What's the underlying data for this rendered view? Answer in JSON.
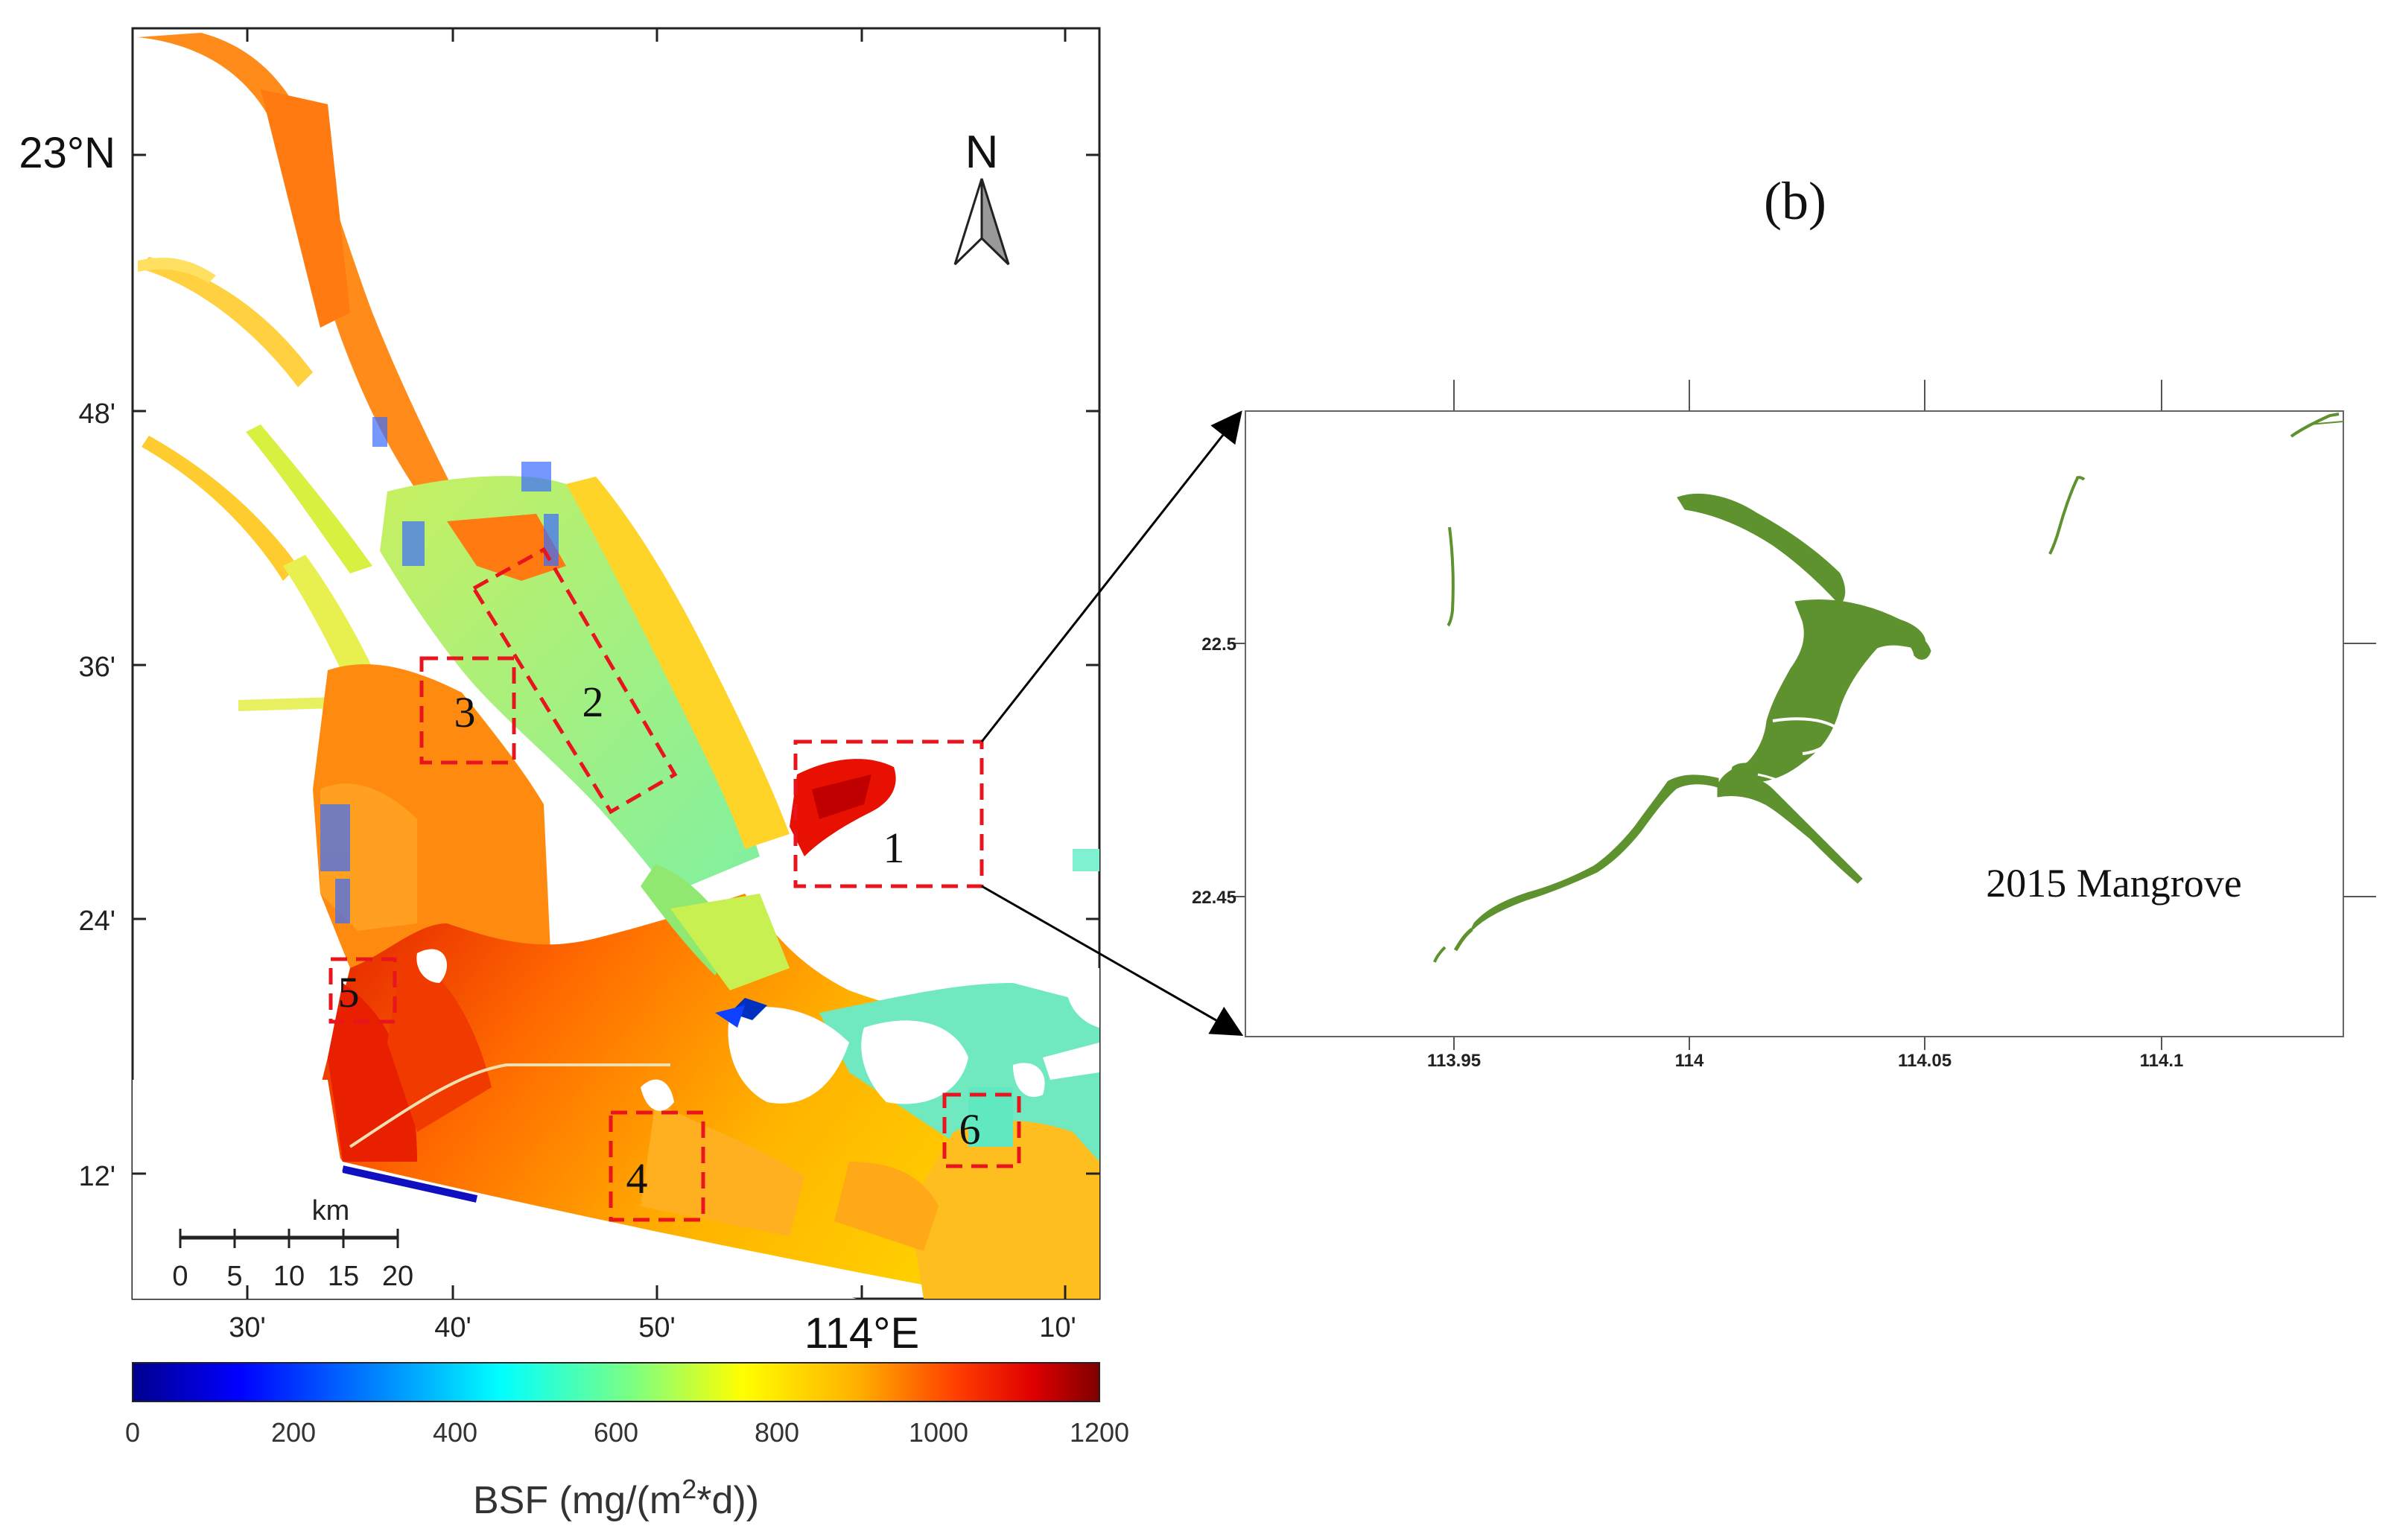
{
  "map_a": {
    "lat_ticks": [
      "23°N",
      "48'",
      "36'",
      "24'",
      "12'"
    ],
    "lon_ticks": [
      "30'",
      "40'",
      "50'",
      "114°E",
      "10'"
    ],
    "north_label": "N",
    "scalebar": {
      "unit": "km",
      "ticks": [
        "0",
        "5",
        "10",
        "15",
        "20"
      ]
    },
    "regions": [
      {
        "id": "1"
      },
      {
        "id": "2"
      },
      {
        "id": "3"
      },
      {
        "id": "4"
      },
      {
        "id": "5"
      },
      {
        "id": "6"
      }
    ],
    "colorbar": {
      "ticks": [
        "0",
        "200",
        "400",
        "600",
        "800",
        "1000",
        "1200"
      ],
      "range": [
        0,
        1200
      ],
      "label_prefix": "BSF (mg/(m",
      "label_sup": "2",
      "label_suffix": "*d))",
      "colors": [
        "#00008f",
        "#0000ff",
        "#00b0ff",
        "#00ffff",
        "#7fff7f",
        "#ffff00",
        "#ffb000",
        "#ff4000",
        "#e00000",
        "#800000"
      ]
    }
  },
  "map_b": {
    "panel_label": "(b)",
    "x_ticks": [
      "113.95",
      "114",
      "114.05",
      "114.1"
    ],
    "y_ticks": [
      "22.5",
      "22.45"
    ],
    "caption": "2015 Mangrove",
    "mangrove_color": "#5e922e"
  }
}
